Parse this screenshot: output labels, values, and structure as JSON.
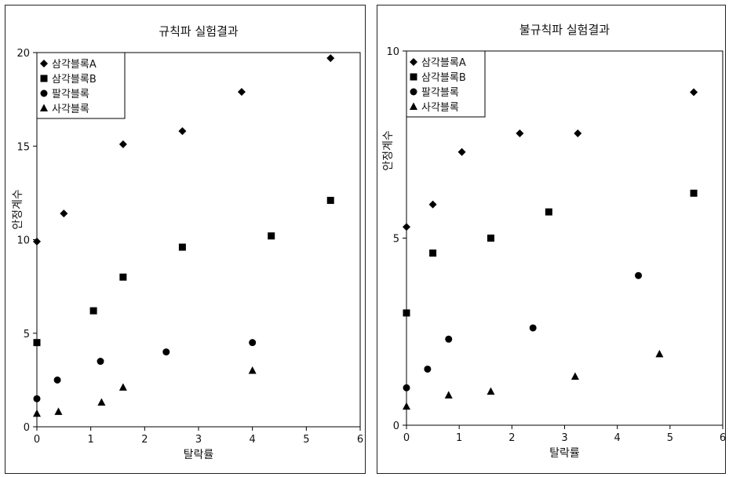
{
  "chart_data": [
    {
      "type": "scatter",
      "title": "규칙파 실험결과",
      "xlabel": "탈락률",
      "ylabel": "안정계수",
      "xlim": [
        0,
        6
      ],
      "ylim": [
        0,
        20
      ],
      "xticks": [
        "0",
        "1",
        "2",
        "3",
        "4",
        "5",
        "6"
      ],
      "yticks": [
        "0",
        "5",
        "10",
        "15",
        "20"
      ],
      "grid": false,
      "legend_position": "top-left",
      "series": [
        {
          "name": "삼각블록A",
          "marker": "diamond",
          "x": [
            0,
            0.5,
            1.6,
            2.7,
            3.8,
            5.45
          ],
          "y": [
            9.9,
            11.4,
            15.1,
            15.8,
            17.9,
            19.7
          ]
        },
        {
          "name": "삼각블록B",
          "marker": "square",
          "x": [
            0,
            1.05,
            1.6,
            2.7,
            4.35,
            5.45
          ],
          "y": [
            4.5,
            6.2,
            8.0,
            9.6,
            10.2,
            12.1
          ]
        },
        {
          "name": "팔각블록",
          "marker": "circle",
          "x": [
            0,
            0.38,
            1.18,
            2.4,
            4.0
          ],
          "y": [
            1.5,
            2.5,
            3.5,
            4.0,
            4.5
          ]
        },
        {
          "name": "사각블록",
          "marker": "triangle",
          "x": [
            0,
            0.4,
            1.2,
            1.6,
            4.0
          ],
          "y": [
            0.7,
            0.8,
            1.3,
            2.1,
            3.0
          ]
        }
      ]
    },
    {
      "type": "scatter",
      "title": "불규칙파 실험결과",
      "xlabel": "탈락률",
      "ylabel": "안정계수",
      "xlim": [
        0,
        6
      ],
      "ylim": [
        0,
        10
      ],
      "xticks": [
        "0",
        "1",
        "2",
        "3",
        "4",
        "5",
        "6"
      ],
      "yticks": [
        "0",
        "5",
        "10"
      ],
      "grid": false,
      "legend_position": "top-left",
      "series": [
        {
          "name": "삼각블록A",
          "marker": "diamond",
          "x": [
            0,
            0.5,
            1.05,
            2.15,
            3.25,
            5.45
          ],
          "y": [
            5.3,
            5.9,
            7.3,
            7.8,
            7.8,
            8.9
          ]
        },
        {
          "name": "삼각블록B",
          "marker": "square",
          "x": [
            0,
            0.5,
            1.6,
            2.7,
            5.45
          ],
          "y": [
            3.0,
            4.6,
            5.0,
            5.7,
            6.2
          ]
        },
        {
          "name": "팔각블록",
          "marker": "circle",
          "x": [
            0,
            0.4,
            0.8,
            2.4,
            4.4
          ],
          "y": [
            1.0,
            1.5,
            2.3,
            2.6,
            4.0
          ]
        },
        {
          "name": "사각블록",
          "marker": "triangle",
          "x": [
            0,
            0.8,
            1.6,
            3.2,
            4.8
          ],
          "y": [
            0.5,
            0.8,
            0.9,
            1.3,
            1.9
          ]
        }
      ]
    }
  ]
}
